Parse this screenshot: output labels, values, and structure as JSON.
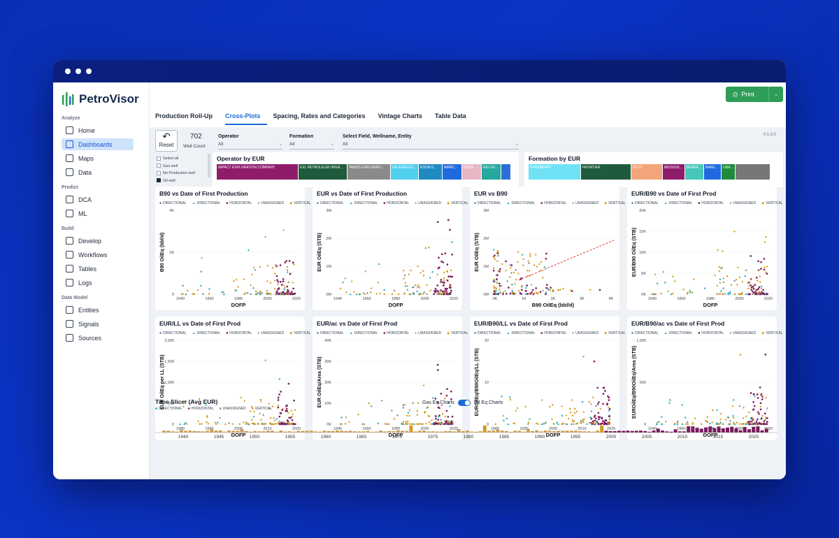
{
  "app": {
    "name": "PetroVisor",
    "print": "Print",
    "version": "V.1.0.0"
  },
  "sidebar": [
    {
      "section": "Analyze",
      "items": [
        {
          "label": "Home",
          "icon": "home-icon"
        },
        {
          "label": "Dashboards",
          "icon": "dashboard-icon",
          "active": true
        },
        {
          "label": "Maps",
          "icon": "map-icon"
        },
        {
          "label": "Data",
          "icon": "data-icon"
        }
      ]
    },
    {
      "section": "Predict",
      "items": [
        {
          "label": "DCA",
          "icon": "chart-line-icon"
        },
        {
          "label": "ML",
          "icon": "lightbulb-icon"
        }
      ]
    },
    {
      "section": "Build",
      "items": [
        {
          "label": "Develop",
          "icon": "code-icon"
        },
        {
          "label": "Workflows",
          "icon": "workflow-icon"
        },
        {
          "label": "Tables",
          "icon": "table-icon"
        },
        {
          "label": "Logs",
          "icon": "log-icon"
        }
      ]
    },
    {
      "section": "Data Model",
      "items": [
        {
          "label": "Entities",
          "icon": "layers-icon"
        },
        {
          "label": "Signals",
          "icon": "signal-icon"
        },
        {
          "label": "Sources",
          "icon": "database-icon"
        }
      ]
    }
  ],
  "tabs": [
    "Production Roll-Up",
    "Cross-Plots",
    "Spacing, Rates and Categories",
    "Vintage Charts",
    "Table Data"
  ],
  "active_tab": 1,
  "filters": {
    "reset": "Reset",
    "well_count": "702",
    "well_count_label": "Well Count",
    "checks": [
      {
        "label": "Select all",
        "on": false
      },
      {
        "label": "Gas well",
        "on": false
      },
      {
        "label": "No Production well",
        "on": false
      },
      {
        "label": "Oil well",
        "on": true
      }
    ],
    "operator": {
      "label": "Operator",
      "value": "All"
    },
    "formation": {
      "label": "Formation",
      "value": "All"
    },
    "field": {
      "label": "Select Field, Wellname, Entity",
      "value": "All"
    }
  },
  "treemaps": [
    {
      "title": "Operator by EUR",
      "cells": [
        {
          "label": "IMPACT EXPLORATION COMPANY",
          "color": "#8e1c6b",
          "w": 117
        },
        {
          "label": "EXL PETROLEUM OPER...",
          "color": "#1f5a3c",
          "w": 70
        },
        {
          "label": "TANOS EXPLORATI...",
          "color": "#8a8a8a",
          "w": 62
        },
        {
          "label": "HG ENERGY...",
          "color": "#4fd0ef",
          "w": 40
        },
        {
          "label": "KODA O...",
          "color": "#1f8ac0",
          "w": 34
        },
        {
          "label": "IMPAC...",
          "color": "#1f6ae0",
          "w": 28
        },
        {
          "label": "KODA ...",
          "color": "#e8b7c4",
          "w": 28
        },
        {
          "label": "RIO OIL...",
          "color": "#24a8a0",
          "w": 28
        },
        {
          "label": "",
          "color": "#2e6fd6",
          "w": 14
        }
      ]
    },
    {
      "title": "Formation by EUR",
      "cells": [
        {
          "label": "SPRABERRY",
          "color": "#6fe2f5",
          "w": 75
        },
        {
          "label": "FRONTIER",
          "color": "#1f5a3c",
          "w": 72
        },
        {
          "label": "PETIT",
          "color": "#f4a47a",
          "w": 45
        },
        {
          "label": "MISSISSI...",
          "color": "#8e1c6b",
          "w": 32
        },
        {
          "label": "BEREA...",
          "color": "#46c7b8",
          "w": 27
        },
        {
          "label": "BAKK...",
          "color": "#1f6ae0",
          "w": 25
        },
        {
          "label": "UNA...",
          "color": "#1f8a3c",
          "w": 20
        },
        {
          "label": "",
          "color": "#777",
          "w": 50
        }
      ]
    }
  ],
  "legend": [
    {
      "label": "DIRECTIONAL",
      "color": "#1f3c88",
      "symbol": "●"
    },
    {
      "label": "DIRECTIONAL",
      "color": "#1aa4c0",
      "symbol": "▲"
    },
    {
      "label": "HORIZONTAL",
      "color": "#7a1c5c",
      "symbol": "■"
    },
    {
      "label": "UNASSIGNED",
      "color": "#888888",
      "symbol": "●"
    },
    {
      "label": "VERTICAL",
      "color": "#d79a1e",
      "symbol": "◆"
    }
  ],
  "chart_data": [
    {
      "type": "scatter",
      "title": "B90 vs Date of First Production",
      "xlabel": "DOFP",
      "ylabel": "B90 OilEq (bbl/d)",
      "xticks": [
        "1940",
        "1960",
        "1980",
        "2000",
        "2020"
      ],
      "yticks": [
        "0",
        "2K",
        "4K"
      ],
      "xlim": [
        1935,
        2023
      ],
      "ylim": [
        0,
        5000
      ]
    },
    {
      "type": "scatter",
      "title": "EUR vs Date of First Production",
      "xlabel": "DOFP",
      "ylabel": "EUR OilEq (STB)",
      "xticks": [
        "1940",
        "1960",
        "1980",
        "2000",
        "2020"
      ],
      "yticks": [
        "0M",
        "1M",
        "2M",
        "3M"
      ],
      "xlim": [
        1935,
        2023
      ],
      "ylim": [
        0,
        3000000
      ]
    },
    {
      "type": "scatter",
      "title": "EUR vs B90",
      "xlabel": "B90 OilEq (bbl/d)",
      "ylabel": "EUR OilEq (STB)",
      "xticks": [
        "0K",
        "1K",
        "2K",
        "3K",
        "4K"
      ],
      "yticks": [
        "0M",
        "1M",
        "2M",
        "3M"
      ],
      "xlim": [
        0,
        4800
      ],
      "ylim": [
        0,
        3000000
      ]
    },
    {
      "type": "scatter",
      "title": "EUR/B90 vs Date of First Prod",
      "xlabel": "DOFP",
      "ylabel": "EUR/B90 OilEq (STB)",
      "xticks": [
        "1940",
        "1960",
        "1980",
        "2000",
        "2020"
      ],
      "yticks": [
        "0K",
        "5K",
        "10K",
        "15K",
        "20K"
      ],
      "xlim": [
        1935,
        2023
      ],
      "ylim": [
        0,
        20000
      ]
    },
    {
      "type": "scatter",
      "title": "EUR/LL vs Date of First Prod",
      "xlabel": "DOFP",
      "ylabel": "EUR OilEq per LL (STB)",
      "xticks": [
        "1980",
        "1990",
        "2000",
        "2010",
        "2020"
      ],
      "yticks": [
        "0",
        "500",
        "1,000",
        "1,500",
        "2,000"
      ],
      "xlim": [
        1975,
        2023
      ],
      "ylim": [
        0,
        2000
      ]
    },
    {
      "type": "scatter",
      "title": "EUR/ac vs Date of First Prod",
      "xlabel": "DOFP",
      "ylabel": "EUR OilEq/Area (STB)",
      "xticks": [
        "1940",
        "1960",
        "1980",
        "2000",
        "2020"
      ],
      "yticks": [
        "0K",
        "10K",
        "20K",
        "30K",
        "40K"
      ],
      "xlim": [
        1935,
        2023
      ],
      "ylim": [
        0,
        40000
      ]
    },
    {
      "type": "scatter",
      "title": "EUR/B90/LL vs Date of First Prod",
      "xlabel": "DOFP",
      "ylabel": "EUROilEq/B90OilEq/LL (STB)",
      "xticks": [
        "1980",
        "1990",
        "2000",
        "2010",
        "2020"
      ],
      "yticks": [
        "0",
        "10",
        "20"
      ],
      "xlim": [
        1975,
        2023
      ],
      "ylim": [
        0,
        25
      ]
    },
    {
      "type": "scatter",
      "title": "EUR/B90/ac vs Date of First Prod",
      "xlabel": "DOFP",
      "ylabel": "EUROilEq/B90OilEq/Area (STB)",
      "xticks": [
        "1940",
        "1960",
        "1980",
        "2000",
        "2020"
      ],
      "yticks": [
        "0",
        "500",
        "1,000"
      ],
      "xlim": [
        1935,
        2023
      ],
      "ylim": [
        0,
        1100
      ]
    }
  ],
  "slicer": {
    "title": "Time Slicer (Avg EUR)",
    "toggle_left": "Gas Eq Charts",
    "toggle_right": "Oil Eq Charts",
    "legend": [
      "DIRECTIONAL",
      "HORIZONTAL",
      "UNASSIGNED",
      "VERTICAL"
    ],
    "ticks": [
      "1940",
      "1945",
      "1950",
      "1955",
      "1960",
      "1965",
      "1970",
      "1975",
      "1980",
      "1985",
      "1990",
      "1995",
      "2000",
      "2005",
      "2010",
      "2015",
      "2020"
    ]
  }
}
